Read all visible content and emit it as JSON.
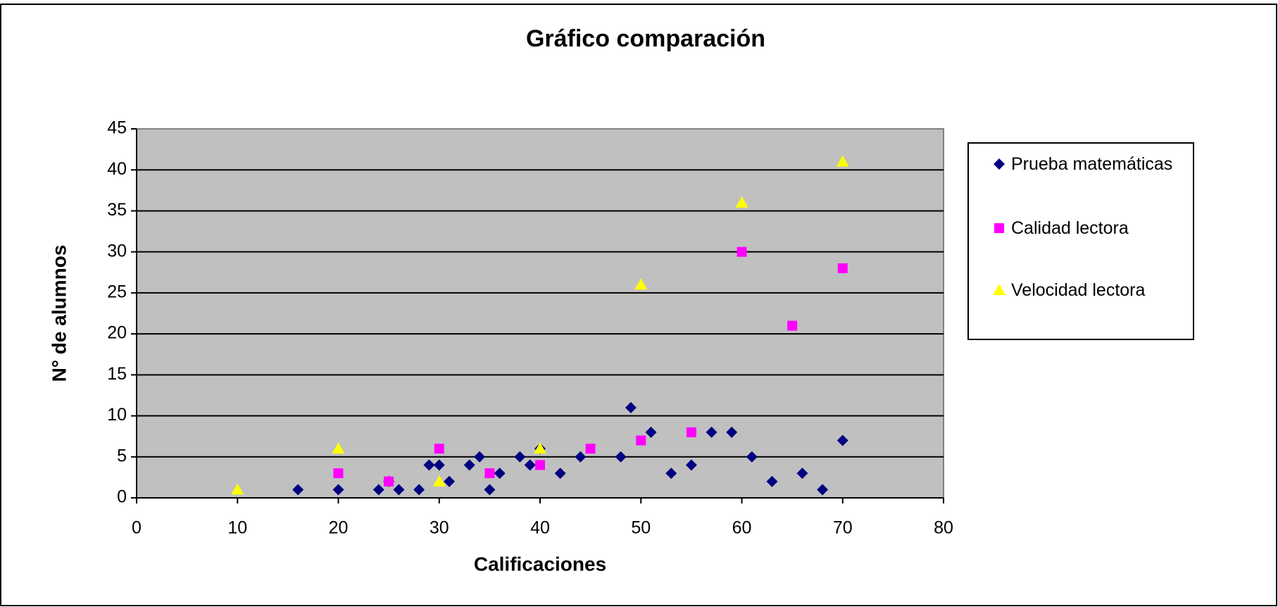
{
  "chart_data": {
    "type": "scatter",
    "title": "Gráfico comparación",
    "x_label": "Calificaciones",
    "y_label": "N° de alumnos",
    "xlim": [
      0,
      80
    ],
    "xticks": [
      0,
      10,
      20,
      30,
      40,
      50,
      60,
      70,
      80
    ],
    "ylim": [
      0,
      45
    ],
    "yticks": [
      0,
      5,
      10,
      15,
      20,
      25,
      30,
      35,
      40,
      45
    ],
    "grid": true,
    "legend": "right",
    "series": [
      {
        "name": "Prueba matemáticas",
        "color": "#000080",
        "marker": "diamond",
        "x": [
          16,
          20,
          24,
          25,
          26,
          28,
          29,
          30,
          31,
          33,
          34,
          35,
          36,
          38,
          39,
          40,
          42,
          44,
          48,
          49,
          51,
          53,
          55,
          57,
          59,
          61,
          63,
          66,
          68,
          70
        ],
        "values": [
          1,
          1,
          1,
          2,
          1,
          1,
          4,
          4,
          2,
          4,
          5,
          1,
          3,
          5,
          4,
          6,
          3,
          5,
          5,
          11,
          8,
          3,
          4,
          8,
          8,
          5,
          2,
          3,
          1,
          7
        ]
      },
      {
        "name": "Calidad lectora",
        "color": "#ff00ff",
        "marker": "square",
        "x": [
          20,
          25,
          30,
          35,
          40,
          45,
          50,
          55,
          60,
          65,
          70
        ],
        "values": [
          3,
          2,
          6,
          3,
          4,
          6,
          7,
          8,
          30,
          21,
          28
        ]
      },
      {
        "name": "Velocidad lectora",
        "color": "#ffff00",
        "marker": "triangle",
        "x": [
          10,
          20,
          30,
          40,
          50,
          60,
          70
        ],
        "values": [
          1,
          6,
          2,
          6,
          26,
          36,
          41
        ]
      }
    ]
  }
}
